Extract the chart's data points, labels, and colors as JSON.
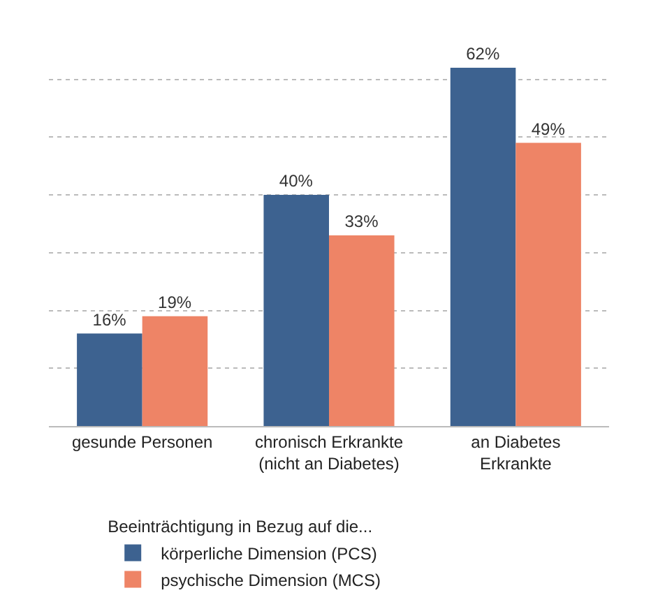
{
  "chart_data": {
    "type": "bar",
    "categories": [
      "gesunde Personen",
      "chronisch Erkrankte\n(nicht an Diabetes)",
      "an Diabetes\nErkrankte"
    ],
    "series": [
      {
        "name": "körperliche Dimension (PCS)",
        "color": "#3d6290",
        "values": [
          16,
          40,
          62
        ],
        "value_labels": [
          "16%",
          "40%",
          "62%"
        ]
      },
      {
        "name": "psychische Dimension (MCS)",
        "color": "#ee8466",
        "values": [
          19,
          33,
          49
        ],
        "value_labels": [
          "19%",
          "33%",
          "49%"
        ]
      }
    ],
    "legend_title": "Beeinträchtigung in Bezug auf die...",
    "legend": "bottom",
    "grid": "y"
  }
}
